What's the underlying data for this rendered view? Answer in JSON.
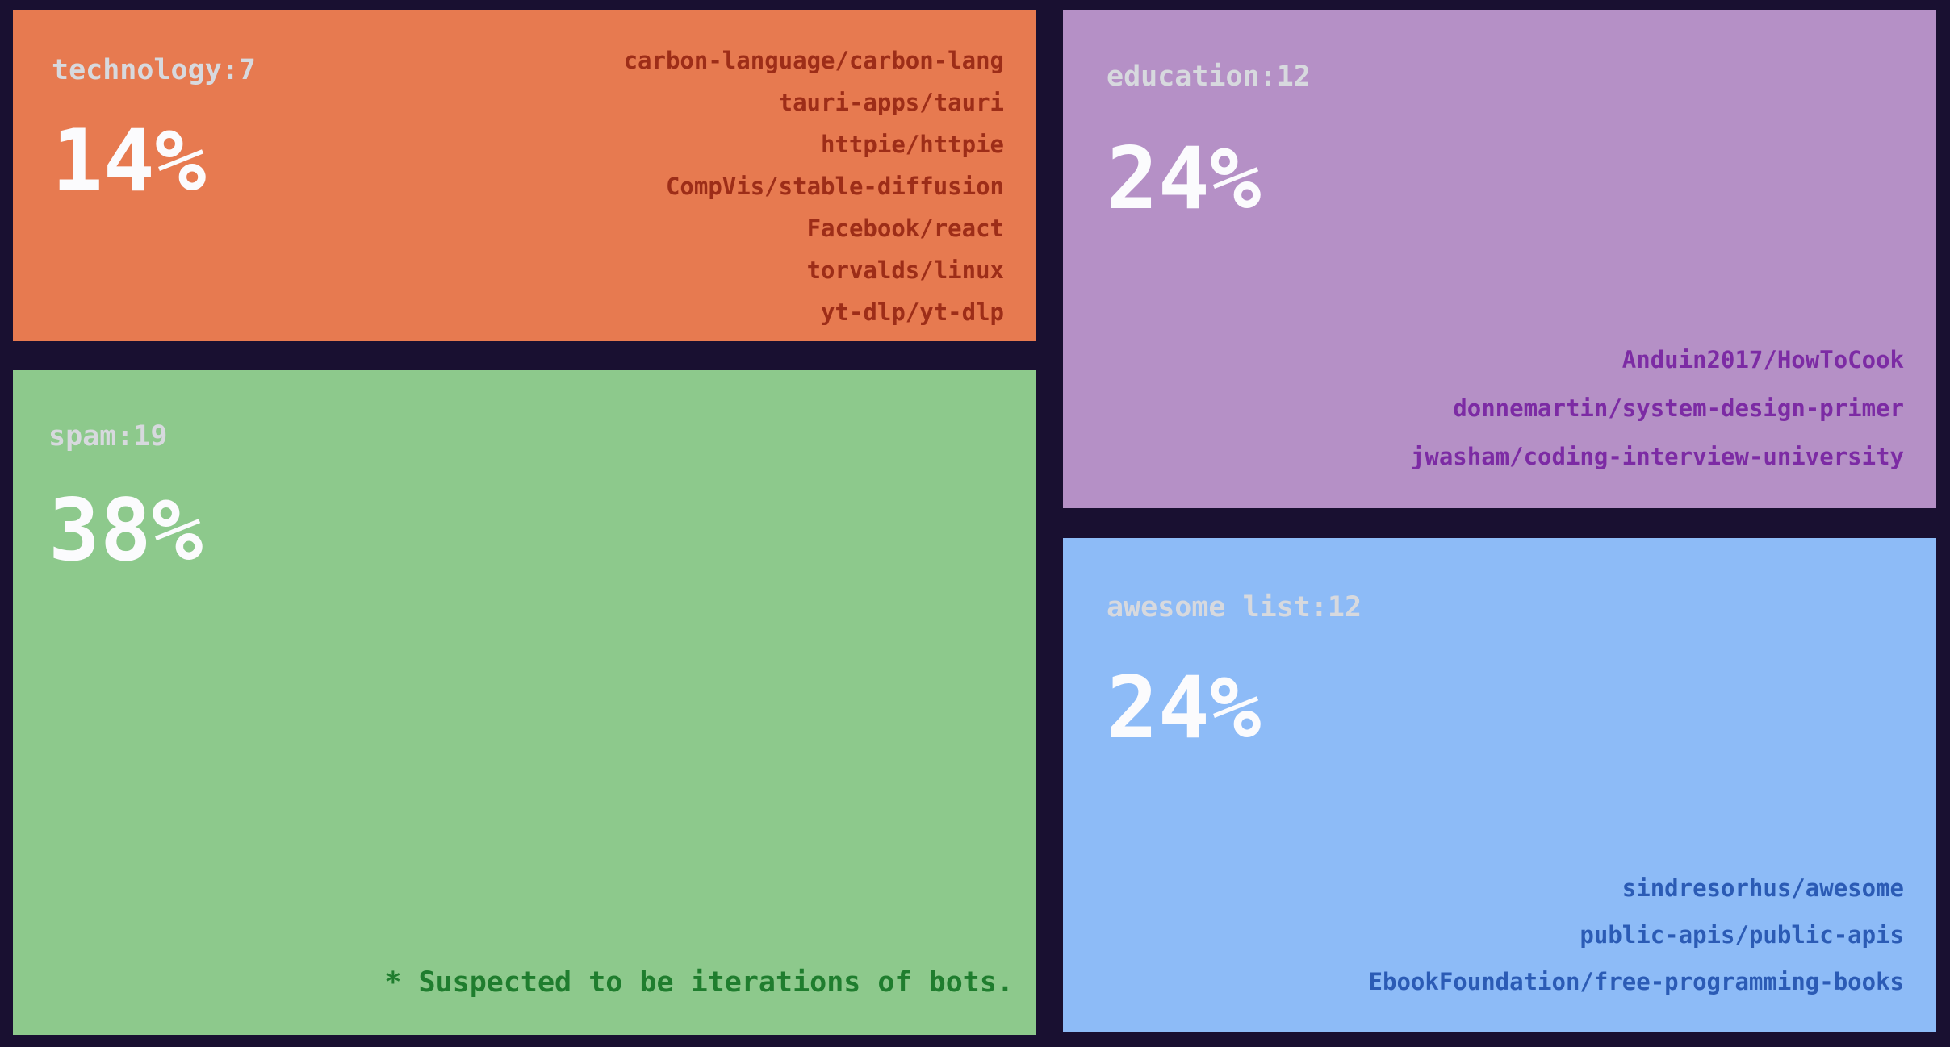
{
  "chart_data": {
    "type": "treemap",
    "unit": "percent",
    "cells": [
      {
        "category": "technology",
        "count": 7,
        "label": "technology:7",
        "value": 14,
        "percent_label": "14%",
        "fill": "#e77a50",
        "label_color": "#d7d9de",
        "percent_color": "#fbfbfd",
        "text_color": "#9d2d18",
        "repos": [
          "carbon-language/carbon-lang",
          "tauri-apps/tauri",
          "httpie/httpie",
          "CompVis/stable-diffusion",
          "Facebook/react",
          "torvalds/linux",
          "yt-dlp/yt-dlp"
        ]
      },
      {
        "category": "spam",
        "count": 19,
        "label": "spam:19",
        "value": 38,
        "percent_label": "38%",
        "fill": "#8dc98c",
        "label_color": "#d7d9de",
        "percent_color": "#fbfbfd",
        "text_color": "#1f7d2e",
        "repos": [],
        "note": "* Suspected to be iterations of bots."
      },
      {
        "category": "education",
        "count": 12,
        "label": "education:12",
        "value": 24,
        "percent_label": "24%",
        "fill": "#b590c6",
        "label_color": "#d7d9de",
        "percent_color": "#fbfbfd",
        "text_color": "#7c2ba4",
        "repos": [
          "Anduin2017/HowToCook",
          "donnemartin/system-design-primer",
          "jwasham/coding-interview-university"
        ]
      },
      {
        "category": "awesome list",
        "count": 12,
        "label": "awesome list:12",
        "value": 24,
        "percent_label": "24%",
        "fill": "#8dbbf7",
        "label_color": "#d7d9de",
        "percent_color": "#fbfbfd",
        "text_color": "#2b5bb5",
        "repos": [
          "sindresorhus/awesome",
          "public-apis/public-apis",
          "EbookFoundation/free-programming-books"
        ]
      }
    ]
  }
}
